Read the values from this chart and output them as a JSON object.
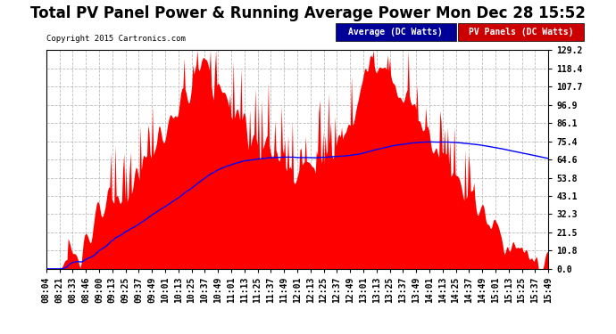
{
  "title": "Total PV Panel Power & Running Average Power Mon Dec 28 15:52",
  "copyright": "Copyright 2015 Cartronics.com",
  "yticks": [
    0.0,
    10.8,
    21.5,
    32.3,
    43.1,
    53.8,
    64.6,
    75.4,
    86.1,
    96.9,
    107.7,
    118.4,
    129.2
  ],
  "ymax": 129.2,
  "ymin": 0.0,
  "legend_avg_label": "Average (DC Watts)",
  "legend_pv_label": "PV Panels (DC Watts)",
  "legend_avg_color": "#0000ff",
  "legend_avg_bg": "#000099",
  "legend_pv_bg": "#cc0000",
  "legend_pv_color": "#ff0000",
  "background_color": "#ffffff",
  "plot_bg_color": "#ffffff",
  "grid_color": "#bbbbbb",
  "title_fontsize": 12,
  "tick_label_fontsize": 7,
  "xtick_labels": [
    "08:04",
    "08:21",
    "08:33",
    "08:46",
    "09:00",
    "09:13",
    "09:25",
    "09:37",
    "09:49",
    "10:01",
    "10:13",
    "10:25",
    "10:37",
    "10:49",
    "11:01",
    "11:13",
    "11:25",
    "11:37",
    "11:49",
    "12:01",
    "12:13",
    "12:25",
    "12:37",
    "12:49",
    "13:01",
    "13:13",
    "13:25",
    "13:37",
    "13:49",
    "14:01",
    "14:13",
    "14:25",
    "14:37",
    "14:49",
    "15:01",
    "15:13",
    "15:25",
    "15:37",
    "15:49"
  ]
}
